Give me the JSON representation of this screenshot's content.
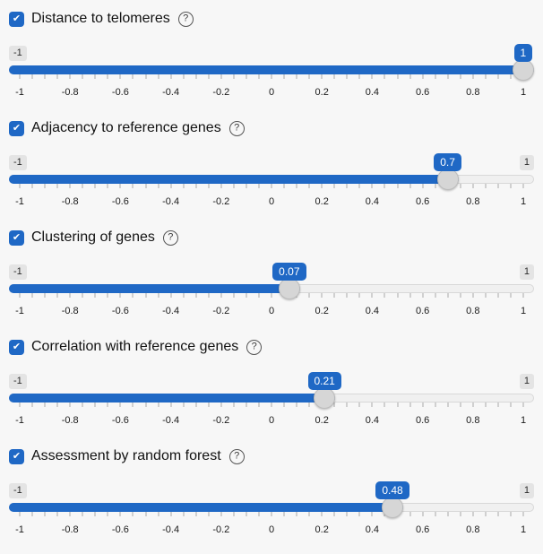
{
  "colors": {
    "background": "#f7f7f7",
    "accent": "#1f68c5",
    "minmax_badge_bg": "#e4e4e4",
    "minmax_badge_text": "#2a2a2a",
    "value_badge_text": "#ffffff",
    "handle_fill": "#d6d6d6",
    "handle_border": "#bdbdbd",
    "track_empty": "#f0f0f0",
    "track_border": "#d8d8d8",
    "major_tick": "#1a1a1a",
    "minor_tick": "#a8a8a8"
  },
  "icons": {
    "check_glyph": "✔",
    "help_glyph": "?"
  },
  "grid": {
    "min": -1,
    "max": 1,
    "minor_step": 0.05,
    "major_labels": [
      "-1",
      "-0.8",
      "-0.6",
      "-0.4",
      "-0.2",
      "0",
      "0.2",
      "0.4",
      "0.6",
      "0.8",
      "1"
    ]
  },
  "sliders": [
    {
      "label": "Distance to telomeres",
      "checked": true,
      "value": 1,
      "value_label": "1",
      "min_badge": "-1",
      "max_badge": "1"
    },
    {
      "label": "Adjacency to reference genes",
      "checked": true,
      "value": 0.7,
      "value_label": "0.7",
      "min_badge": "-1",
      "max_badge": "1"
    },
    {
      "label": "Clustering of genes",
      "checked": true,
      "value": 0.07,
      "value_label": "0.07",
      "min_badge": "-1",
      "max_badge": "1"
    },
    {
      "label": "Correlation with reference genes",
      "checked": true,
      "value": 0.21,
      "value_label": "0.21",
      "min_badge": "-1",
      "max_badge": "1"
    },
    {
      "label": "Assessment by random forest",
      "checked": true,
      "value": 0.48,
      "value_label": "0.48",
      "min_badge": "-1",
      "max_badge": "1"
    }
  ]
}
